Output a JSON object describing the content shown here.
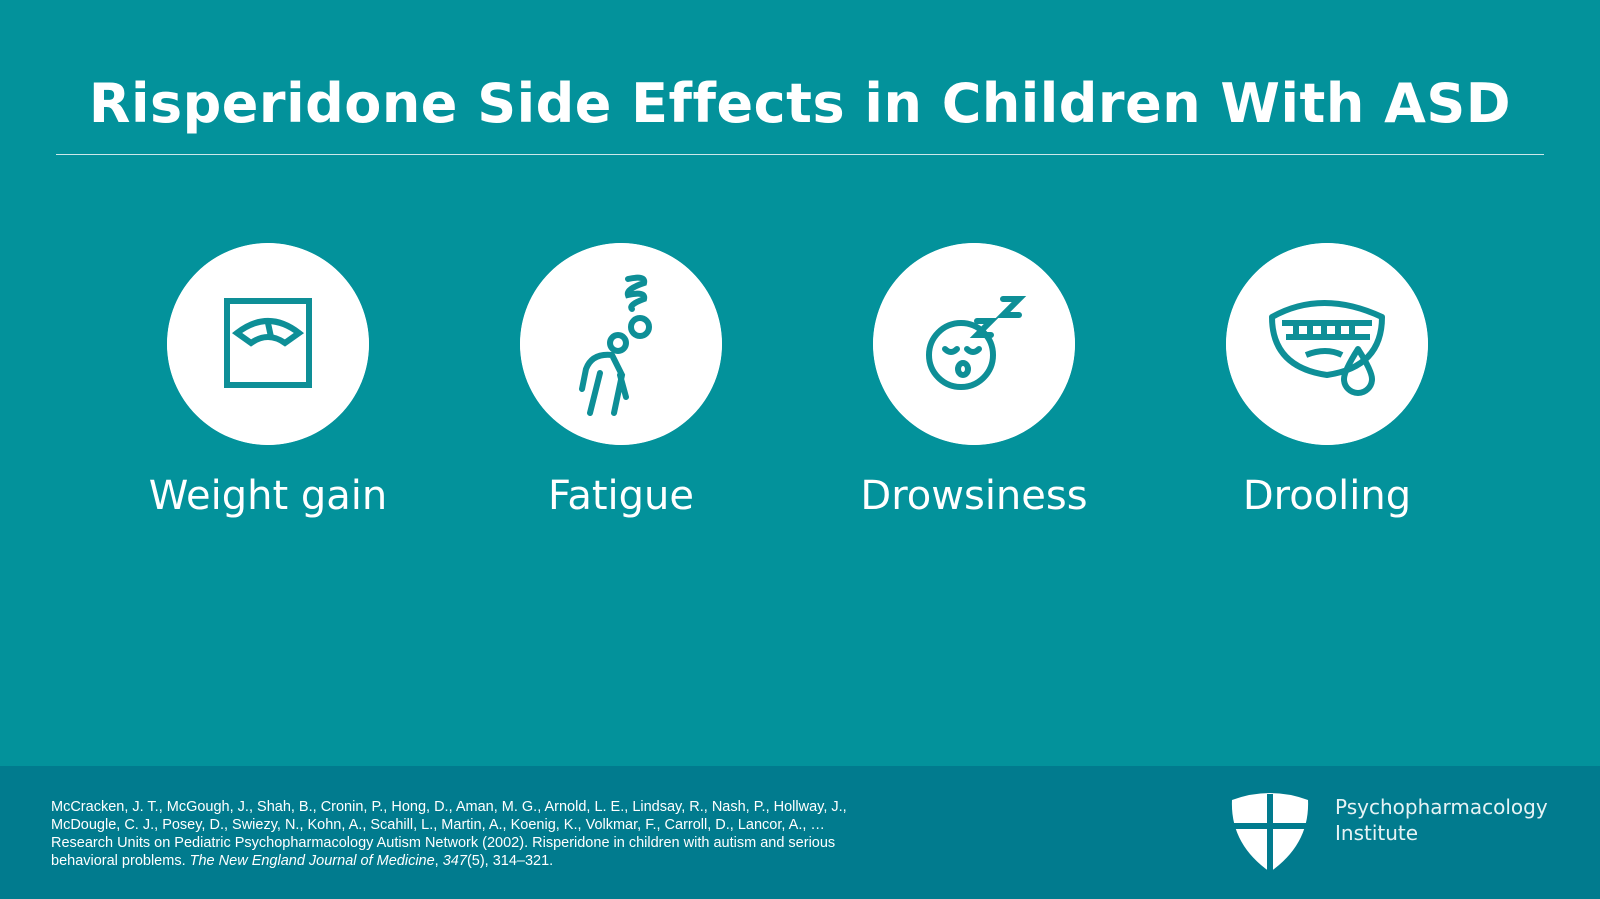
{
  "header": {
    "title": "Risperidone Side Effects in Children With ASD"
  },
  "items": [
    {
      "label": "Weight gain"
    },
    {
      "label": "Fatigue"
    },
    {
      "label": "Drowsiness"
    },
    {
      "label": "Drooling"
    }
  ],
  "footer": {
    "citation": [
      "McCracken, J. T., McGough, J., Shah, B., Cronin, P., Hong, D., Aman, M. G., Arnold, L. E., Lindsay, R., Nash, P., Hollway, J., McDougle, C. J., Posey, D., Swiezy, N., Kohn, A., Scahill, L., Martin, A., Koenig, K., Volkmar, F., Carroll, D., Lancor, A., … Research Units on Pediatric Psychopharmacology Autism Network (2002). Risperidone in children with autism and serious behavioral problems. ",
      "The New England Journal of Medicine",
      ", ",
      "347",
      "(5), 314–321."
    ],
    "logo": [
      "Psychopharmacology",
      "Institute"
    ]
  }
}
